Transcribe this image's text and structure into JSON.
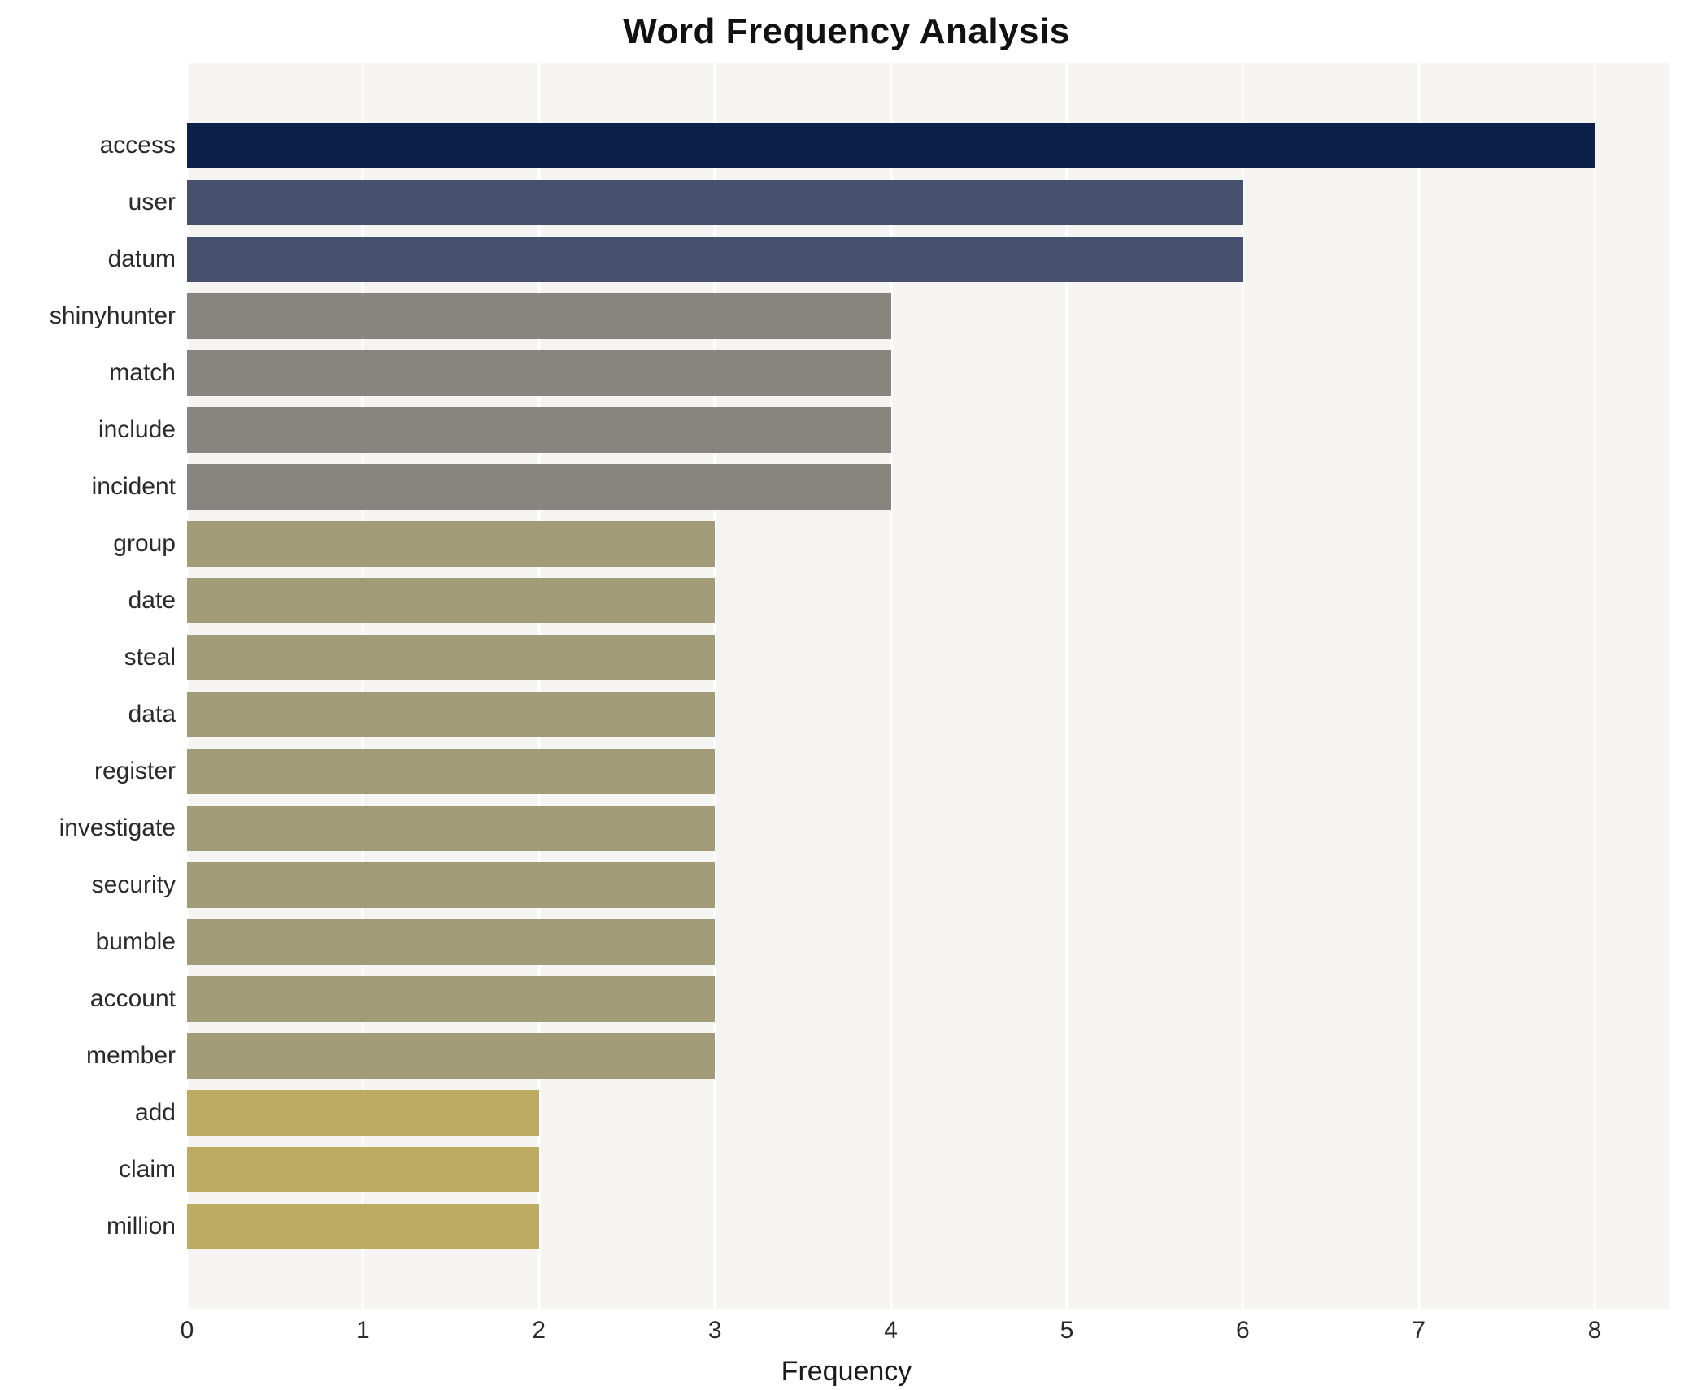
{
  "chart_data": {
    "type": "bar",
    "orientation": "horizontal",
    "title": "Word Frequency Analysis",
    "xlabel": "Frequency",
    "ylabel": "",
    "xlim": [
      0,
      8.42
    ],
    "xticks": [
      0,
      1,
      2,
      3,
      4,
      5,
      6,
      7,
      8
    ],
    "grid": true,
    "legend_position": "none",
    "plot_background": "#f5f4f2",
    "grid_color": "#ffffff",
    "categories": [
      "access",
      "user",
      "datum",
      "shinyhunter",
      "match",
      "include",
      "incident",
      "group",
      "date",
      "steal",
      "data",
      "register",
      "investigate",
      "security",
      "bumble",
      "account",
      "member",
      "add",
      "claim",
      "million"
    ],
    "values": [
      8,
      6,
      6,
      4,
      4,
      4,
      4,
      3,
      3,
      3,
      3,
      3,
      3,
      3,
      3,
      3,
      3,
      2,
      2,
      2
    ],
    "bar_colors": [
      "#0b2149",
      "#454f6e",
      "#454f6e",
      "#87857f",
      "#87857f",
      "#87857f",
      "#87857f",
      "#a19b78",
      "#a19b78",
      "#a19b78",
      "#a19b78",
      "#a19b78",
      "#a19b78",
      "#a19b78",
      "#a19b78",
      "#a19b78",
      "#a19b78",
      "#bcab61",
      "#bcab61",
      "#bcab61"
    ]
  }
}
